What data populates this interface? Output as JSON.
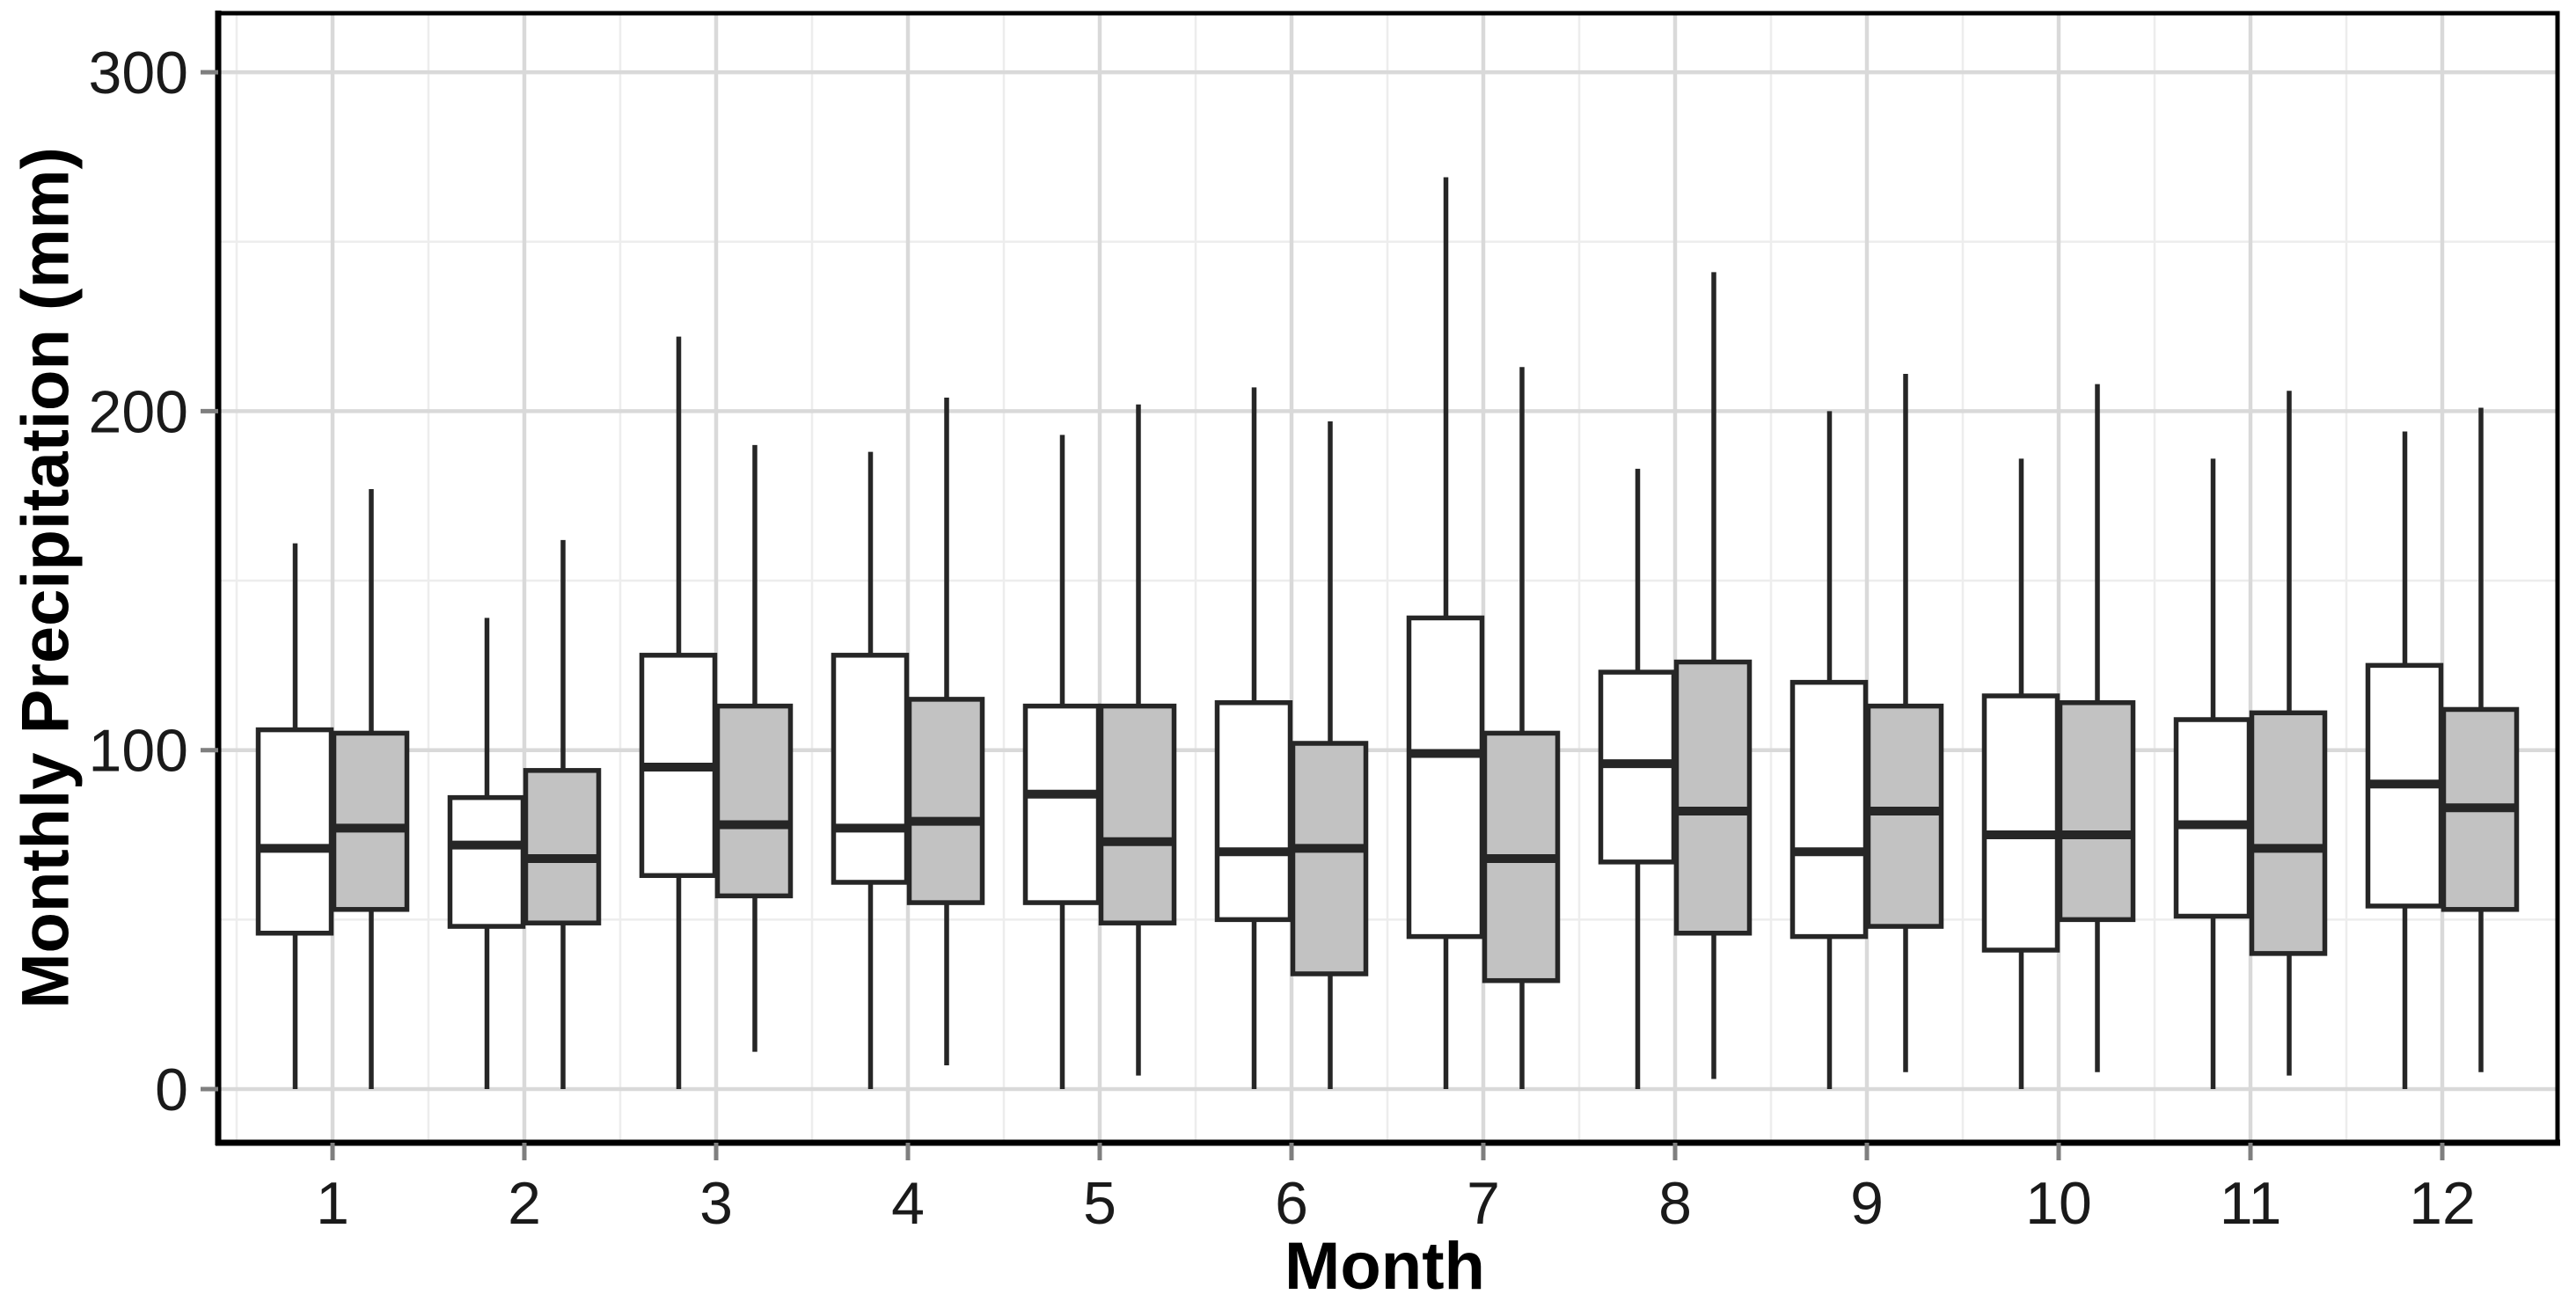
{
  "chart_data": {
    "type": "boxplot",
    "title": "",
    "xlabel": "Month",
    "ylabel": "Monthly Precipitation (mm)",
    "x_tick_labels": [
      "1",
      "2",
      "3",
      "4",
      "5",
      "6",
      "7",
      "8",
      "9",
      "10",
      "11",
      "12"
    ],
    "y_tick_labels": [
      "0",
      "100",
      "200",
      "300"
    ],
    "y_ticks": [
      0,
      100,
      200,
      300
    ],
    "y_minor_ticks": [
      50,
      150,
      250
    ],
    "ylim": [
      -16,
      317
    ],
    "grid": "on",
    "legend_position": "none",
    "colors": {
      "series_white_fill": "#ffffff",
      "series_gray_fill": "#c2c2c2",
      "box_border": "#262626",
      "major_grid": "#d9d9d9",
      "minor_grid": "#ededed",
      "panel_border": "#000000",
      "tick_mark": "#7f7f7f",
      "tick_label": "#1a1a1a"
    },
    "series": [
      {
        "name": "white",
        "fill": "#ffffff",
        "data": [
          {
            "month": 1,
            "lo": 0,
            "q1": 46,
            "med": 71,
            "q3": 106,
            "hi": 161
          },
          {
            "month": 2,
            "lo": 0,
            "q1": 48,
            "med": 72,
            "q3": 86,
            "hi": 139
          },
          {
            "month": 3,
            "lo": 0,
            "q1": 63,
            "med": 95,
            "q3": 128,
            "hi": 222
          },
          {
            "month": 4,
            "lo": 0,
            "q1": 61,
            "med": 77,
            "q3": 128,
            "hi": 188
          },
          {
            "month": 5,
            "lo": 0,
            "q1": 55,
            "med": 87,
            "q3": 113,
            "hi": 193
          },
          {
            "month": 6,
            "lo": 0,
            "q1": 50,
            "med": 70,
            "q3": 114,
            "hi": 207
          },
          {
            "month": 7,
            "lo": 0,
            "q1": 45,
            "med": 99,
            "q3": 139,
            "hi": 269
          },
          {
            "month": 8,
            "lo": 0,
            "q1": 67,
            "med": 96,
            "q3": 123,
            "hi": 183
          },
          {
            "month": 9,
            "lo": 0,
            "q1": 45,
            "med": 70,
            "q3": 120,
            "hi": 200
          },
          {
            "month": 10,
            "lo": 0,
            "q1": 41,
            "med": 75,
            "q3": 116,
            "hi": 186
          },
          {
            "month": 11,
            "lo": 0,
            "q1": 51,
            "med": 78,
            "q3": 109,
            "hi": 186
          },
          {
            "month": 12,
            "lo": 0,
            "q1": 54,
            "med": 90,
            "q3": 125,
            "hi": 194
          }
        ]
      },
      {
        "name": "gray",
        "fill": "#c2c2c2",
        "data": [
          {
            "month": 1,
            "lo": 0,
            "q1": 53,
            "med": 77,
            "q3": 105,
            "hi": 177
          },
          {
            "month": 2,
            "lo": 0,
            "q1": 49,
            "med": 68,
            "q3": 94,
            "hi": 162
          },
          {
            "month": 3,
            "lo": 11,
            "q1": 57,
            "med": 78,
            "q3": 113,
            "hi": 190
          },
          {
            "month": 4,
            "lo": 7,
            "q1": 55,
            "med": 79,
            "q3": 115,
            "hi": 204
          },
          {
            "month": 5,
            "lo": 4,
            "q1": 49,
            "med": 73,
            "q3": 113,
            "hi": 202
          },
          {
            "month": 6,
            "lo": 0,
            "q1": 34,
            "med": 71,
            "q3": 102,
            "hi": 197
          },
          {
            "month": 7,
            "lo": 0,
            "q1": 32,
            "med": 68,
            "q3": 105,
            "hi": 213
          },
          {
            "month": 8,
            "lo": 3,
            "q1": 46,
            "med": 82,
            "q3": 126,
            "hi": 241
          },
          {
            "month": 9,
            "lo": 5,
            "q1": 48,
            "med": 82,
            "q3": 113,
            "hi": 211
          },
          {
            "month": 10,
            "lo": 5,
            "q1": 50,
            "med": 75,
            "q3": 114,
            "hi": 208
          },
          {
            "month": 11,
            "lo": 4,
            "q1": 40,
            "med": 71,
            "q3": 111,
            "hi": 206
          },
          {
            "month": 12,
            "lo": 5,
            "q1": 53,
            "med": 83,
            "q3": 112,
            "hi": 201
          }
        ]
      }
    ]
  }
}
